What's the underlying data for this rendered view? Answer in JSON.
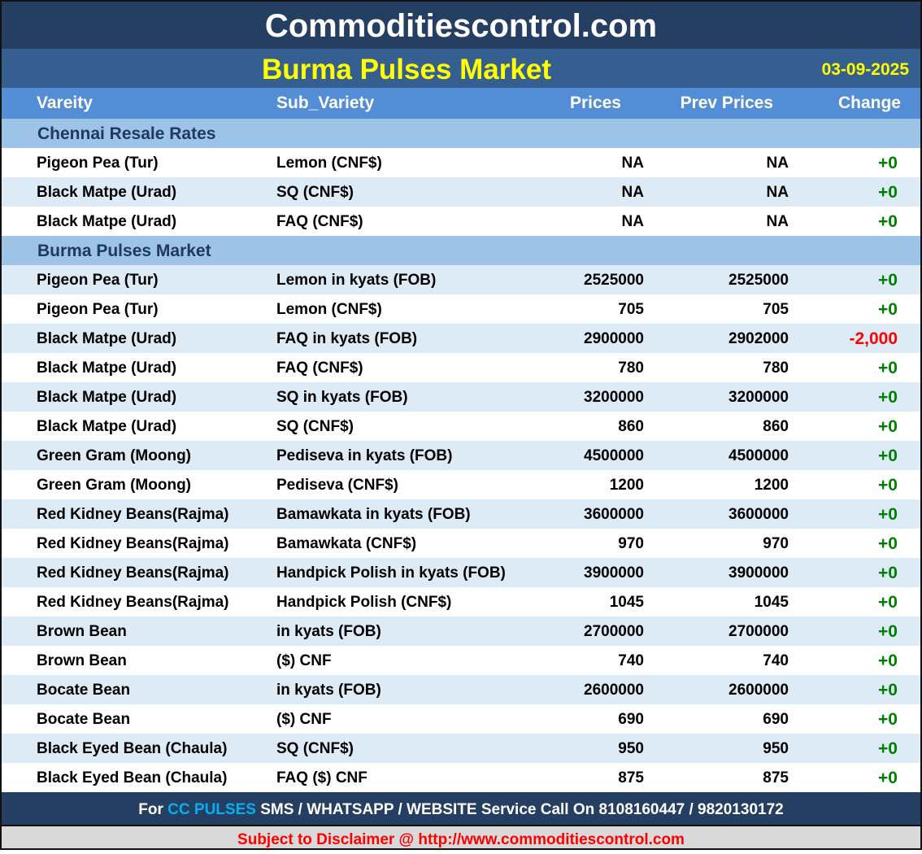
{
  "site_title": "Commoditiescontrol.com",
  "market_title": "Burma Pulses Market",
  "date": "03-09-2025",
  "columns": [
    "Vareity",
    "Sub_Variety",
    "Prices",
    "Prev Prices",
    "Change"
  ],
  "colors": {
    "header": "#253f62",
    "subheader": "#365f91",
    "column_header": "#538dd5",
    "section": "#9dc3e6",
    "alt_row": "#ddebf7",
    "positive": "#008000",
    "negative": "#ff0000",
    "title": "#ffff00"
  },
  "sections": [
    {
      "title": "Chennai Resale Rates",
      "rows": [
        [
          "Pigeon Pea (Tur)",
          "Lemon (CNF$)",
          "NA",
          "NA",
          "+0"
        ],
        [
          "Black Matpe (Urad)",
          "SQ (CNF$)",
          "NA",
          "NA",
          "+0"
        ],
        [
          "Black Matpe (Urad)",
          "FAQ (CNF$)",
          "NA",
          "NA",
          "+0"
        ]
      ]
    },
    {
      "title": "Burma Pulses Market",
      "rows": [
        [
          "Pigeon Pea (Tur)",
          "Lemon in kyats (FOB)",
          "2525000",
          "2525000",
          "+0"
        ],
        [
          "Pigeon Pea (Tur)",
          "Lemon (CNF$)",
          "705",
          "705",
          "+0"
        ],
        [
          "Black Matpe (Urad)",
          "FAQ in kyats (FOB)",
          "2900000",
          "2902000",
          "-2,000"
        ],
        [
          "Black Matpe (Urad)",
          "FAQ (CNF$)",
          "780",
          "780",
          "+0"
        ],
        [
          "Black Matpe (Urad)",
          "SQ in kyats (FOB)",
          "3200000",
          "3200000",
          "+0"
        ],
        [
          "Black Matpe (Urad)",
          "SQ (CNF$)",
          "860",
          "860",
          "+0"
        ],
        [
          "Green Gram (Moong)",
          "Pediseva in kyats (FOB)",
          "4500000",
          "4500000",
          "+0"
        ],
        [
          "Green Gram (Moong)",
          "Pediseva (CNF$)",
          "1200",
          "1200",
          "+0"
        ],
        [
          "Red Kidney Beans(Rajma)",
          "Bamawkata in kyats (FOB)",
          "3600000",
          "3600000",
          "+0"
        ],
        [
          "Red Kidney Beans(Rajma)",
          "Bamawkata (CNF$)",
          "970",
          "970",
          "+0"
        ],
        [
          "Red Kidney Beans(Rajma)",
          "Handpick Polish in kyats (FOB)",
          "3900000",
          "3900000",
          "+0"
        ],
        [
          "Red Kidney Beans(Rajma)",
          "Handpick Polish (CNF$)",
          "1045",
          "1045",
          "+0"
        ],
        [
          "Brown Bean",
          "in kyats (FOB)",
          "2700000",
          "2700000",
          "+0"
        ],
        [
          "Brown Bean",
          "($) CNF",
          "740",
          "740",
          "+0"
        ],
        [
          "Bocate Bean",
          "in kyats (FOB)",
          "2600000",
          "2600000",
          "+0"
        ],
        [
          "Bocate Bean",
          "($) CNF",
          "690",
          "690",
          "+0"
        ],
        [
          "Black Eyed Bean (Chaula)",
          "SQ (CNF$)",
          "950",
          "950",
          "+0"
        ],
        [
          "Black Eyed Bean (Chaula)",
          "FAQ ($) CNF",
          "875",
          "875",
          "+0"
        ]
      ]
    }
  ],
  "footer": {
    "prefix": "For ",
    "highlight": "CC PULSES",
    "suffix": " SMS / WHATSAPP / WEBSITE Service Call On 8108160447 / 9820130172"
  },
  "disclaimer": "Subject to Disclaimer @  http://www.commoditiescontrol.com"
}
